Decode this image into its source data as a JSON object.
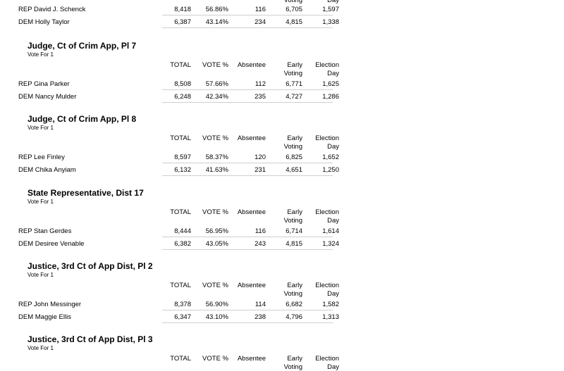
{
  "top": {
    "header_fragments": {
      "early_tail": "Voting",
      "election_tail": "Day"
    },
    "rows": [
      {
        "candidate": "REP David J. Schenck",
        "total": "8,418",
        "pct": "56.86%",
        "absentee": "116",
        "early": "6,705",
        "election": "1,597"
      },
      {
        "candidate": "DEM Holly Taylor",
        "total": "6,387",
        "pct": "43.14%",
        "absentee": "234",
        "early": "4,815",
        "election": "1,338"
      }
    ]
  },
  "headers": {
    "total": "TOTAL",
    "pct": "VOTE %",
    "absentee": "Absentee",
    "early_1": "Early",
    "early_2": "Voting",
    "election_1": "Election",
    "election_2": "Day"
  },
  "races": [
    {
      "title": "Judge, Ct of Crim App, Pl 7",
      "vote_for": "Vote For 1",
      "rows": [
        {
          "candidate": "REP Gina Parker",
          "total": "8,508",
          "pct": "57.66%",
          "absentee": "112",
          "early": "6,771",
          "election": "1,625"
        },
        {
          "candidate": "DEM Nancy Mulder",
          "total": "6,248",
          "pct": "42.34%",
          "absentee": "235",
          "early": "4,727",
          "election": "1,286"
        }
      ]
    },
    {
      "title": "Judge, Ct of Crim App, Pl 8",
      "vote_for": "Vote For 1",
      "rows": [
        {
          "candidate": "REP Lee Finley",
          "total": "8,597",
          "pct": "58.37%",
          "absentee": "120",
          "early": "6,825",
          "election": "1,652"
        },
        {
          "candidate": "DEM Chika Anyiam",
          "total": "6,132",
          "pct": "41.63%",
          "absentee": "231",
          "early": "4,651",
          "election": "1,250"
        }
      ]
    },
    {
      "title": "State Representative, Dist 17",
      "vote_for": "Vote For 1",
      "rows": [
        {
          "candidate": "REP Stan Gerdes",
          "total": "8,444",
          "pct": "56.95%",
          "absentee": "116",
          "early": "6,714",
          "election": "1,614"
        },
        {
          "candidate": "DEM Desiree Venable",
          "total": "6,382",
          "pct": "43.05%",
          "absentee": "243",
          "early": "4,815",
          "election": "1,324"
        }
      ]
    },
    {
      "title": "Justice, 3rd Ct of App Dist, Pl 2",
      "vote_for": "Vote For 1",
      "rows": [
        {
          "candidate": "REP John Messinger",
          "total": "8,378",
          "pct": "56.90%",
          "absentee": "114",
          "early": "6,682",
          "election": "1,582"
        },
        {
          "candidate": "DEM Maggie Ellis",
          "total": "6,347",
          "pct": "43.10%",
          "absentee": "238",
          "early": "4,796",
          "election": "1,313"
        }
      ]
    },
    {
      "title": "Justice, 3rd Ct of App Dist, Pl 3",
      "vote_for": "Vote For 1",
      "rows": []
    }
  ]
}
